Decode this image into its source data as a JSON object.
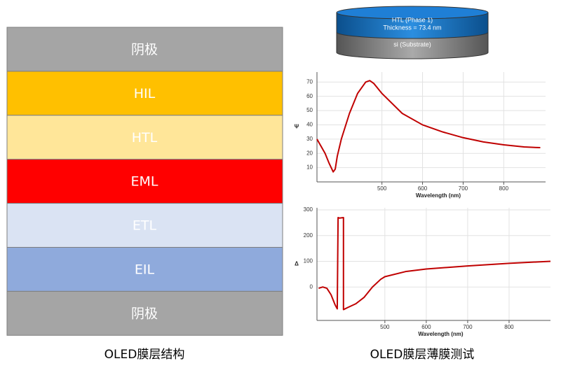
{
  "layers": [
    {
      "label": "阴极",
      "color": "#a5a5a5"
    },
    {
      "label": "HIL",
      "color": "#ffc000"
    },
    {
      "label": "HTL",
      "color": "#ffe699"
    },
    {
      "label": "EML",
      "color": "#ff0000"
    },
    {
      "label": "ETL",
      "color": "#dae3f3"
    },
    {
      "label": "EIL",
      "color": "#8faadc"
    },
    {
      "label": "阴极",
      "color": "#a5a5a5"
    }
  ],
  "left_caption": "OLED膜层结构",
  "right_caption": "OLED膜层薄膜测试",
  "sample": {
    "layer": "HTL (Phase 1)",
    "thickness": "Thickness = 73.4 nm",
    "substrate": "si (Substrate)"
  },
  "chart_data": [
    {
      "type": "line",
      "xlabel": "Wavelength (nm)",
      "ylabel": "Ψ",
      "x": [
        340,
        350,
        360,
        370,
        380,
        385,
        390,
        400,
        420,
        440,
        460,
        470,
        480,
        500,
        550,
        600,
        650,
        700,
        750,
        800,
        850,
        890
      ],
      "series": [
        {
          "color": "#c00000",
          "values": [
            30,
            25,
            20,
            13,
            7,
            9,
            18,
            30,
            48,
            62,
            70,
            71,
            69,
            62,
            48,
            40,
            35,
            31,
            28,
            26,
            24.5,
            24
          ]
        }
      ],
      "xlim": [
        340,
        903
      ],
      "ylim": [
        0,
        77
      ],
      "xticks": [
        500,
        600,
        700,
        800
      ],
      "yticks": [
        10,
        20,
        30,
        40,
        50,
        60,
        70
      ],
      "grid": true
    },
    {
      "type": "line",
      "xlabel": "Wavelength (nm)",
      "ylabel": "Δ",
      "x": [
        340,
        350,
        360,
        370,
        380,
        385,
        387,
        390,
        400,
        400,
        410,
        430,
        450,
        470,
        490,
        500,
        550,
        600,
        700,
        800,
        900
      ],
      "series": [
        {
          "color": "#c00000",
          "values": [
            -5,
            0,
            -5,
            -30,
            -70,
            -85,
            270,
            268,
            270,
            -88,
            -80,
            -65,
            -40,
            0,
            30,
            40,
            60,
            70,
            82,
            92,
            100
          ]
        }
      ],
      "xlim": [
        336,
        900
      ],
      "ylim": [
        -130,
        308
      ],
      "xticks": [
        500,
        600,
        700,
        800
      ],
      "yticks": [
        0,
        100,
        200,
        300
      ],
      "grid": true
    }
  ]
}
